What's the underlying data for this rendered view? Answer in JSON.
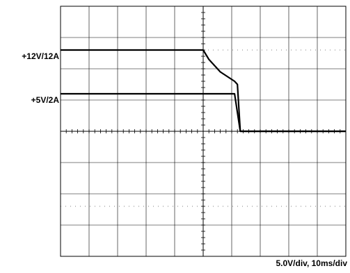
{
  "chart_data": {
    "type": "line",
    "title": "",
    "xlabel": "",
    "ylabel": "",
    "scale_text": "5.0V/div,  10ms/div",
    "divisions": {
      "x": 10,
      "y": 8
    },
    "xlim": [
      0,
      100
    ],
    "ylim": [
      0,
      8
    ],
    "x_units": "ms",
    "y_units": "div",
    "grid": true,
    "series": [
      {
        "name": "+12V/12A",
        "x": [
          0,
          50,
          52,
          56,
          61,
          62,
          63,
          100
        ],
        "y": [
          6.6,
          6.6,
          6.3,
          5.9,
          5.6,
          5.5,
          4.0,
          4.0
        ]
      },
      {
        "name": "+5V/2A",
        "x": [
          0,
          61,
          63,
          100
        ],
        "y": [
          5.2,
          5.2,
          4.0,
          4.0
        ]
      }
    ],
    "colors": {
      "trace": "#000000",
      "grid": "#000000",
      "background": "#ffffff"
    }
  }
}
